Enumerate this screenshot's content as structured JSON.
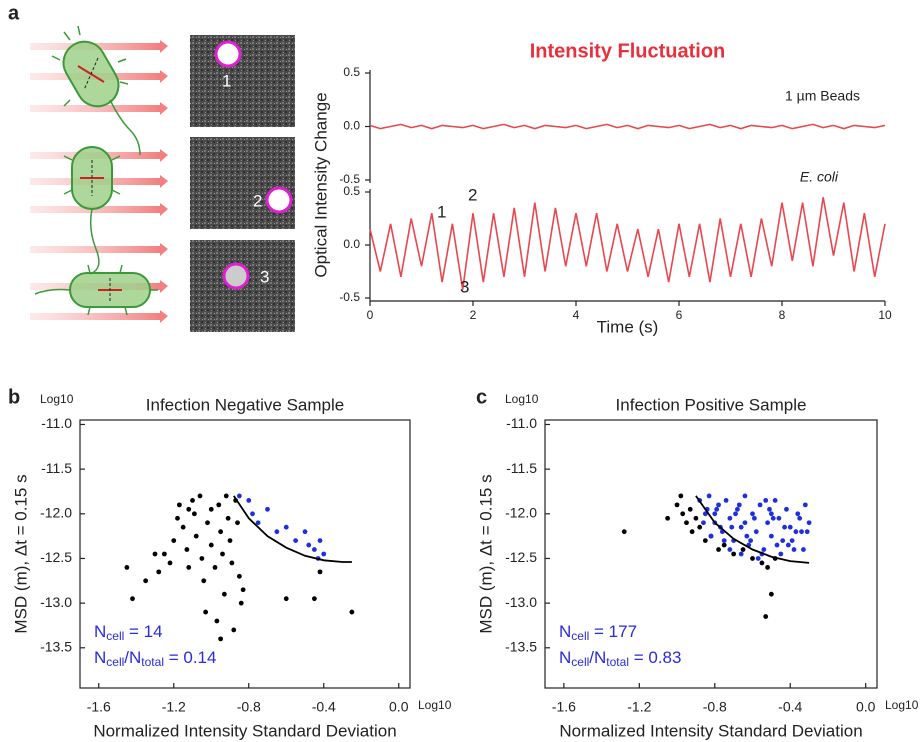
{
  "panels": [
    "a",
    "b",
    "c"
  ],
  "image_labels": [
    "1",
    "2",
    "3"
  ],
  "chart_data": [
    {
      "type": "line",
      "title": "Intensity Fluctuation",
      "ylabel": "Optical Intensity Change",
      "annotations": [
        "1 µm Beads"
      ],
      "x": [
        0,
        0.2,
        0.4,
        0.6,
        0.8,
        1,
        1.2,
        1.4,
        1.6,
        1.8,
        2,
        2.2,
        2.4,
        2.6,
        2.8,
        3,
        3.2,
        3.4,
        3.6,
        3.8,
        4,
        4.2,
        4.4,
        4.6,
        4.8,
        5,
        5.2,
        5.4,
        5.6,
        5.8,
        6,
        6.2,
        6.4,
        6.6,
        6.8,
        7,
        7.2,
        7.4,
        7.6,
        7.8,
        8,
        8.2,
        8.4,
        8.6,
        8.8,
        9,
        9.2,
        9.4,
        9.6,
        9.8,
        10
      ],
      "series": [
        {
          "color": "#e8474f",
          "values": [
            0.01,
            -0.02,
            0,
            0.02,
            -0.01,
            0.01,
            -0.02,
            0.01,
            0,
            -0.01,
            0.01,
            -0.02,
            0,
            0.02,
            -0.01,
            0.01,
            -0.02,
            0.01,
            0,
            -0.01,
            0.01,
            -0.02,
            0,
            0.02,
            -0.01,
            0.01,
            -0.02,
            0.01,
            0,
            -0.01,
            0.01,
            -0.02,
            0,
            0.02,
            -0.01,
            0.01,
            -0.02,
            0.01,
            0,
            -0.01,
            0.01,
            -0.02,
            0,
            0.02,
            -0.01,
            0.01,
            -0.02,
            0.01,
            0,
            -0.01,
            0.01
          ]
        }
      ],
      "xlim": [
        0,
        10
      ],
      "ylim": [
        -0.5,
        0.5
      ],
      "yticks": [
        -0.5,
        {
          "value": 0,
          "label": "0.0"
        },
        0.5
      ]
    },
    {
      "type": "line",
      "xlabel": "Time (s)",
      "annotations": [
        "E. coli",
        "1",
        "2",
        "3"
      ],
      "x": [
        0,
        0.2,
        0.4,
        0.6,
        0.8,
        1,
        1.2,
        1.4,
        1.6,
        1.8,
        2,
        2.2,
        2.4,
        2.6,
        2.8,
        3,
        3.2,
        3.4,
        3.6,
        3.8,
        4,
        4.2,
        4.4,
        4.6,
        4.8,
        5,
        5.2,
        5.4,
        5.6,
        5.8,
        6,
        6.2,
        6.4,
        6.6,
        6.8,
        7,
        7.2,
        7.4,
        7.6,
        7.8,
        8,
        8.2,
        8.4,
        8.6,
        8.8,
        9,
        9.2,
        9.4,
        9.6,
        9.8,
        10
      ],
      "series": [
        {
          "color": "#e8474f",
          "values": [
            0.15,
            -0.25,
            0.2,
            -0.3,
            0.25,
            -0.2,
            0.3,
            -0.35,
            0.2,
            -0.42,
            0.3,
            -0.35,
            0.3,
            -0.3,
            0.35,
            -0.3,
            0.4,
            -0.25,
            0.35,
            -0.2,
            0.3,
            -0.2,
            0.3,
            -0.25,
            0.2,
            -0.25,
            0.15,
            -0.3,
            0.15,
            -0.35,
            0.2,
            -0.3,
            0.2,
            -0.35,
            0.25,
            -0.3,
            0.2,
            -0.3,
            0.25,
            -0.2,
            0.4,
            -0.15,
            0.4,
            -0.2,
            0.45,
            -0.1,
            0.4,
            -0.25,
            0.3,
            -0.3,
            0.2
          ]
        }
      ],
      "xlim": [
        0,
        10
      ],
      "xticks": [
        0,
        2,
        4,
        6,
        8,
        10
      ],
      "ylim": [
        -0.5,
        0.5
      ],
      "yticks": [
        -0.5,
        {
          "value": 0,
          "label": "0.0"
        },
        0.5
      ]
    },
    {
      "type": "scatter",
      "title": "Infection Negative Sample",
      "xlabel": "Normalized Intensity Standard Deviation",
      "ylabel": "MSD (m),  Δt = 0.15 s",
      "x_unit": "Log10",
      "y_unit": "Log10",
      "annotations": [
        [
          "N",
          "cell",
          " = 14"
        ],
        [
          "N",
          "cell",
          "/N",
          "total",
          " = 0.14"
        ]
      ],
      "annotation_color": "#2a2ae0",
      "series": [
        {
          "color": "#000000",
          "x": [
            -1.45,
            -1.42,
            -1.35,
            -1.3,
            -1.28,
            -1.25,
            -1.22,
            -1.2,
            -1.18,
            -1.17,
            -1.15,
            -1.13,
            -1.12,
            -1.1,
            -1.09,
            -1.08,
            -1.06,
            -1.05,
            -1.04,
            -1.03,
            -1.02,
            -1.0,
            -1.0,
            -0.98,
            -0.97,
            -0.96,
            -0.95,
            -0.94,
            -0.93,
            -0.92,
            -0.91,
            -0.9,
            -0.89,
            -0.88,
            -0.87,
            -0.86,
            -0.85,
            -0.84,
            -0.83,
            -0.6,
            -0.45,
            -0.42,
            -0.25,
            -1.12,
            -0.95
          ],
          "values": [
            -12.6,
            -12.95,
            -12.75,
            -12.45,
            -12.65,
            -12.45,
            -12.55,
            -12.3,
            -12.05,
            -11.9,
            -12.15,
            -12.4,
            -12.6,
            -11.85,
            -12.0,
            -12.25,
            -11.8,
            -12.5,
            -12.75,
            -13.1,
            -12.1,
            -11.95,
            -12.35,
            -12.6,
            -13.2,
            -11.9,
            -12.2,
            -12.45,
            -12.9,
            -11.8,
            -12.05,
            -12.3,
            -12.55,
            -13.3,
            -11.85,
            -12.1,
            -12.7,
            -13.0,
            -12.85,
            -12.95,
            -12.95,
            -12.65,
            -13.1,
            -11.95,
            -13.4
          ]
        },
        {
          "color": "#1f2fe0",
          "x": [
            -0.85,
            -0.8,
            -0.78,
            -0.75,
            -0.7,
            -0.65,
            -0.6,
            -0.55,
            -0.5,
            -0.48,
            -0.45,
            -0.43,
            -0.42,
            -0.4
          ],
          "values": [
            -11.8,
            -11.85,
            -12.0,
            -12.1,
            -11.95,
            -12.2,
            -12.15,
            -12.3,
            -12.2,
            -12.35,
            -12.4,
            -12.5,
            -12.3,
            -12.45
          ]
        },
        {
          "color": "#000000",
          "style": "line",
          "x": [
            -0.88,
            -0.8,
            -0.7,
            -0.6,
            -0.5,
            -0.4,
            -0.3,
            -0.25
          ],
          "values": [
            -11.8,
            -12.05,
            -12.25,
            -12.38,
            -12.47,
            -12.52,
            -12.54,
            -12.54
          ]
        }
      ],
      "xlim": [
        -1.7,
        0.06
      ],
      "xticks": [
        -1.6,
        -1.2,
        -0.8,
        -0.4,
        {
          "value": 0,
          "label": "0.0"
        }
      ],
      "ylim": [
        -13.95,
        -10.95
      ],
      "yticks": [
        {
          "value": -11,
          "label": "-11.0"
        },
        -11.5,
        {
          "value": -12,
          "label": "-12.0"
        },
        -12.5,
        {
          "value": -13,
          "label": "-13.0"
        },
        -13.5
      ]
    },
    {
      "type": "scatter",
      "title": "Infection Positive Sample",
      "xlabel": "Normalized Intensity Standard Deviation",
      "ylabel": "MSD (m),  Δt = 0.15 s",
      "x_unit": "Log10",
      "y_unit": "Log10",
      "annotations": [
        [
          "N",
          "cell",
          " = 177"
        ],
        [
          "N",
          "cell",
          "/N",
          "total",
          " = 0.83"
        ]
      ],
      "annotation_color": "#2a2ae0",
      "series": [
        {
          "color": "#000000",
          "x": [
            -1.28,
            -1.05,
            -1.0,
            -0.98,
            -0.97,
            -0.95,
            -0.93,
            -0.92,
            -0.9,
            -0.88,
            -0.85,
            -0.82,
            -0.78,
            -0.75,
            -0.7,
            -0.65,
            -0.6,
            -0.55,
            -0.52,
            -0.5,
            -0.53,
            -0.48
          ],
          "values": [
            -12.2,
            -12.05,
            -11.9,
            -11.8,
            -12.0,
            -12.1,
            -11.95,
            -12.2,
            -12.05,
            -12.15,
            -12.3,
            -12.25,
            -12.4,
            -12.35,
            -12.45,
            -12.4,
            -12.5,
            -12.55,
            -12.6,
            -12.9,
            -13.15,
            -12.5
          ]
        },
        {
          "color": "#1f2fe0",
          "x": [
            -0.88,
            -0.85,
            -0.83,
            -0.8,
            -0.78,
            -0.76,
            -0.74,
            -0.72,
            -0.7,
            -0.68,
            -0.66,
            -0.64,
            -0.62,
            -0.6,
            -0.58,
            -0.56,
            -0.54,
            -0.52,
            -0.5,
            -0.48,
            -0.46,
            -0.44,
            -0.42,
            -0.4,
            -0.38,
            -0.36,
            -0.34,
            -0.32,
            -0.3,
            -0.86,
            -0.82,
            -0.79,
            -0.75,
            -0.71,
            -0.67,
            -0.63,
            -0.59,
            -0.55,
            -0.51,
            -0.47,
            -0.43,
            -0.39,
            -0.35,
            -0.31,
            -0.84,
            -0.77,
            -0.69,
            -0.61,
            -0.53,
            -0.45,
            -0.37,
            -0.8,
            -0.72,
            -0.64,
            -0.57,
            -0.49,
            -0.41,
            -0.33,
            -0.66,
            -0.5
          ],
          "values": [
            -11.85,
            -12.0,
            -11.8,
            -12.1,
            -11.9,
            -12.2,
            -11.85,
            -12.05,
            -12.3,
            -11.95,
            -12.15,
            -11.8,
            -12.35,
            -12.0,
            -12.2,
            -11.9,
            -12.4,
            -12.1,
            -12.25,
            -11.85,
            -12.05,
            -12.3,
            -11.95,
            -12.15,
            -12.4,
            -12.0,
            -12.2,
            -11.9,
            -12.1,
            -12.1,
            -12.25,
            -11.95,
            -12.3,
            -12.15,
            -11.9,
            -12.25,
            -12.05,
            -12.45,
            -11.95,
            -12.35,
            -12.15,
            -12.3,
            -12.05,
            -12.2,
            -11.95,
            -12.15,
            -12.0,
            -12.3,
            -11.85,
            -12.45,
            -12.2,
            -12.0,
            -12.4,
            -12.1,
            -12.5,
            -12.05,
            -12.35,
            -12.4,
            -12.45,
            -12.0
          ]
        },
        {
          "color": "#000000",
          "style": "line",
          "x": [
            -0.9,
            -0.8,
            -0.7,
            -0.6,
            -0.5,
            -0.4,
            -0.3
          ],
          "values": [
            -11.8,
            -12.1,
            -12.28,
            -12.4,
            -12.48,
            -12.53,
            -12.55
          ]
        }
      ],
      "xlim": [
        -1.7,
        0.06
      ],
      "xticks": [
        -1.6,
        -1.2,
        -0.8,
        -0.4,
        {
          "value": 0,
          "label": "0.0"
        }
      ],
      "ylim": [
        -13.95,
        -10.95
      ],
      "yticks": [
        {
          "value": -11,
          "label": "-11.0"
        },
        -11.5,
        {
          "value": -12,
          "label": "-12.0"
        },
        -12.5,
        {
          "value": -13,
          "label": "-13.0"
        },
        -13.5
      ]
    }
  ]
}
